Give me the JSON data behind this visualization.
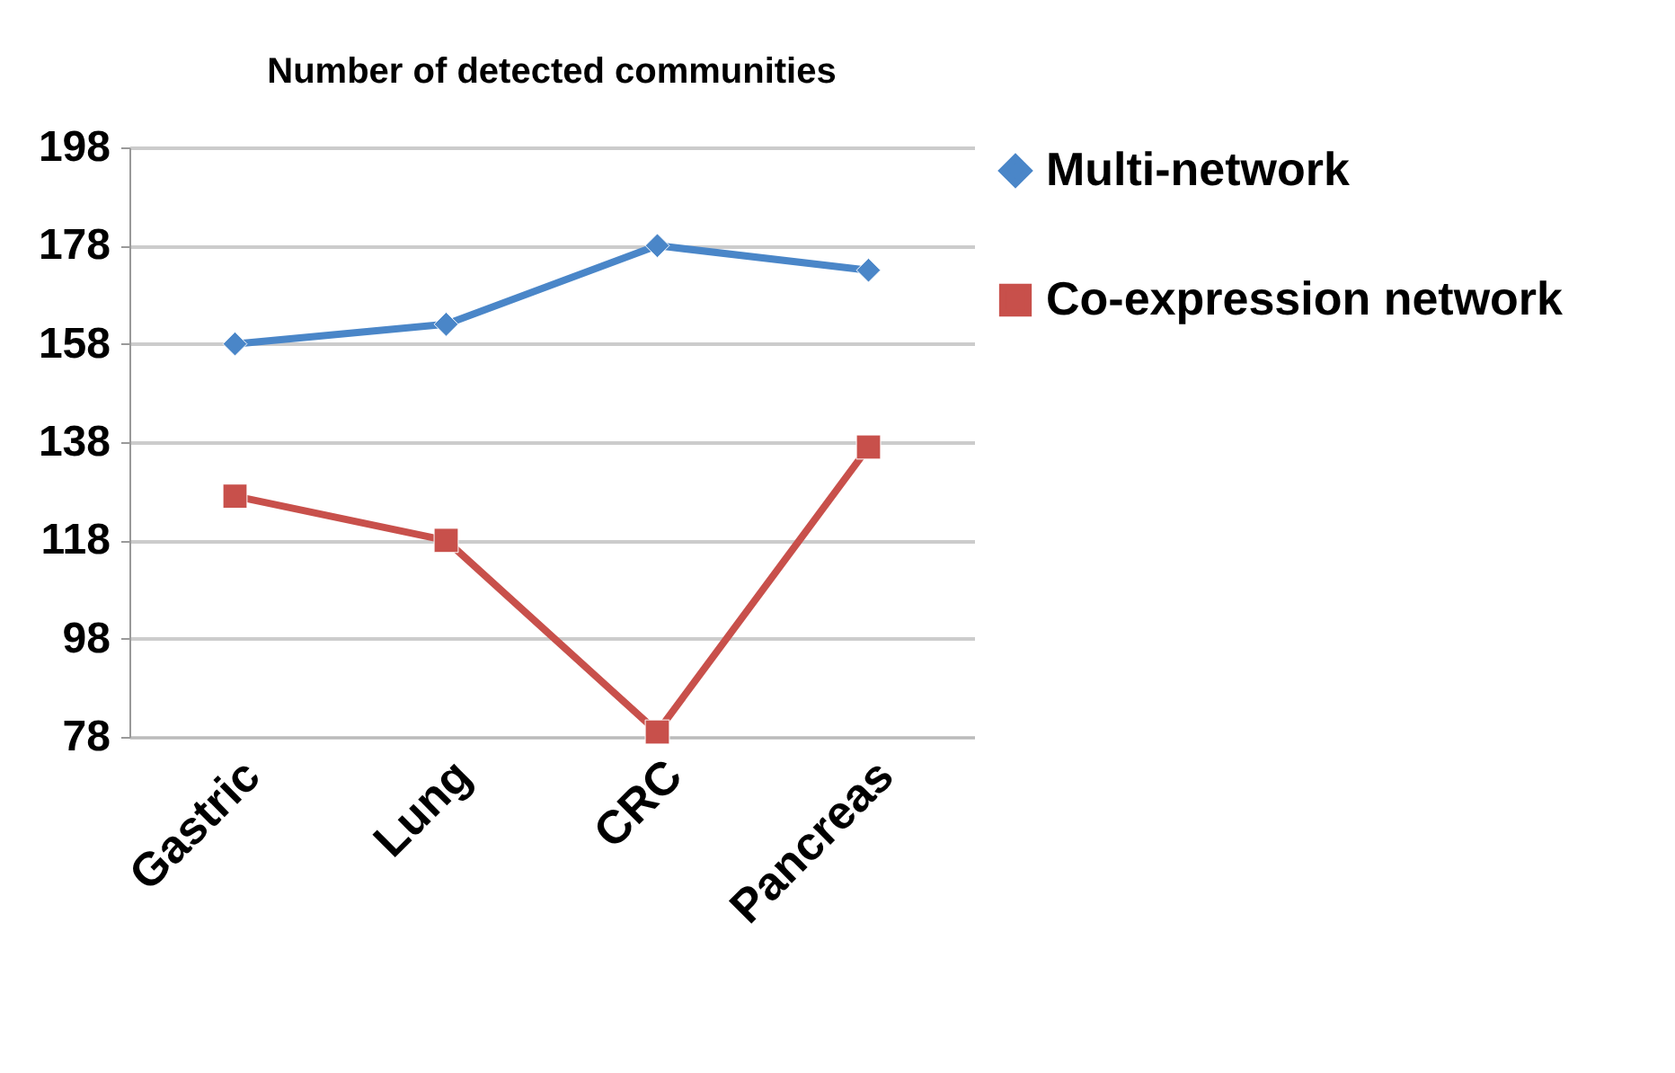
{
  "chart_data": {
    "type": "line",
    "title": "Number of detected communities",
    "categories": [
      "Gastric",
      "Lung",
      "CRC",
      "Pancreas"
    ],
    "series": [
      {
        "name": "Multi-network",
        "color": "#4a86c8",
        "marker": "diamond",
        "values": [
          158,
          162,
          178,
          173
        ]
      },
      {
        "name": "Co-expression network",
        "color": "#c8504b",
        "marker": "square",
        "values": [
          127,
          118,
          79,
          137
        ]
      }
    ],
    "ylim": [
      78,
      198
    ],
    "yticks": [
      78,
      98,
      118,
      138,
      158,
      178,
      198
    ],
    "grid": "y",
    "legend": "right",
    "line_style": "solid"
  }
}
